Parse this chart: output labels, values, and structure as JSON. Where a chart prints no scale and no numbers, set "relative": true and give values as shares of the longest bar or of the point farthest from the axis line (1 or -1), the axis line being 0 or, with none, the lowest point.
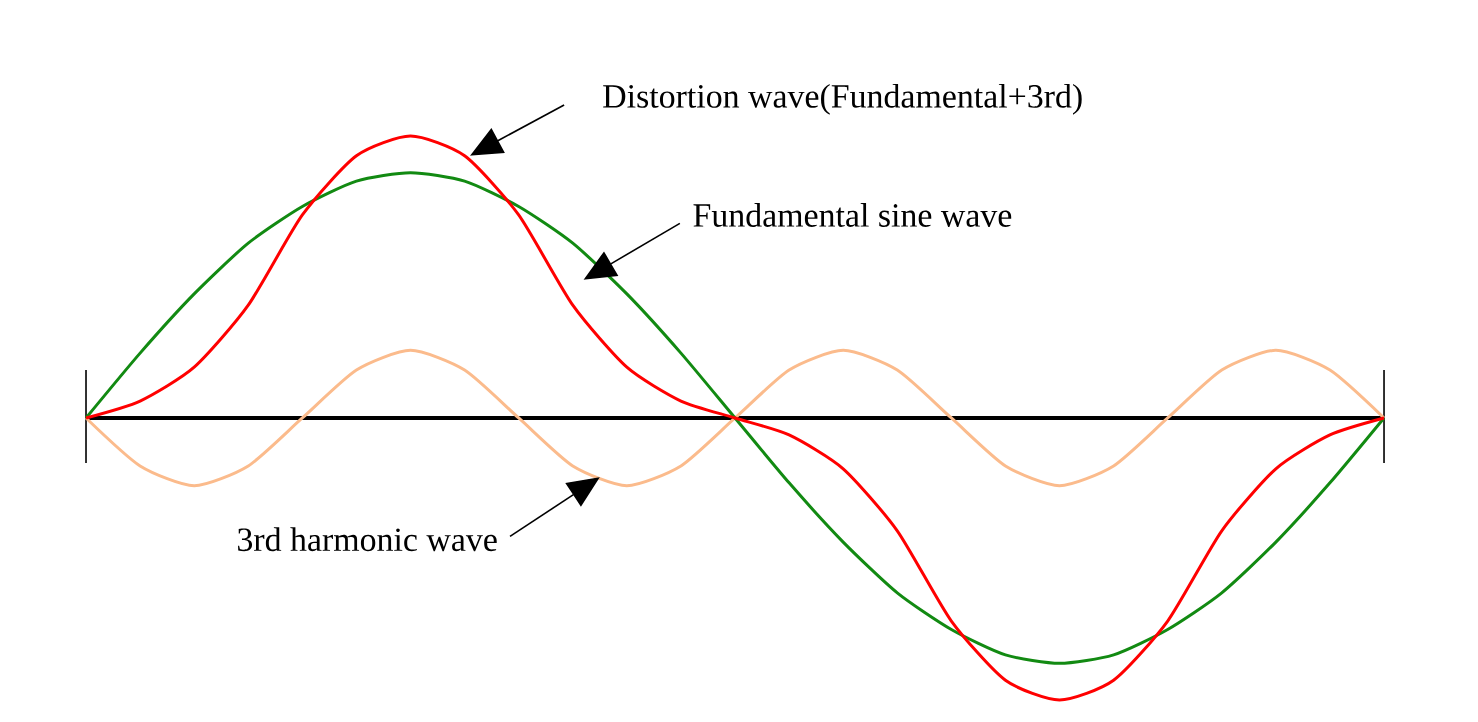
{
  "chart_data": {
    "type": "line",
    "relative": true,
    "categories": [
      null,
      null,
      null,
      null,
      null,
      null,
      null,
      null,
      null,
      null,
      null,
      null,
      null,
      null,
      null,
      null,
      null,
      null,
      null,
      null,
      null,
      null,
      null,
      null,
      null
    ],
    "series": [
      {
        "name": "Distortion  wave(Fundamental+3rd)",
        "color": "#ff0000",
        "values": [
          0,
          0.06,
          0.18,
          0.4,
          0.72,
          0.93,
          1.0,
          0.93,
          0.72,
          0.4,
          0.18,
          0.06,
          0,
          -0.06,
          -0.18,
          -0.4,
          -0.72,
          -0.93,
          -1.0,
          -0.93,
          -0.72,
          -0.4,
          -0.18,
          -0.06,
          0
        ]
      },
      {
        "name": "Fundamental sine wave",
        "color": "#128a12",
        "values": [
          0,
          0.23,
          0.44,
          0.62,
          0.75,
          0.84,
          0.87,
          0.84,
          0.75,
          0.62,
          0.44,
          0.23,
          0,
          -0.23,
          -0.44,
          -0.62,
          -0.75,
          -0.84,
          -0.87,
          -0.84,
          -0.75,
          -0.62,
          -0.44,
          -0.23,
          0
        ]
      },
      {
        "name": "3rd harmonic wave",
        "color": "#fbbb8c",
        "values": [
          0,
          -0.17,
          -0.24,
          -0.17,
          0,
          0.17,
          0.24,
          0.17,
          0,
          -0.17,
          -0.24,
          -0.17,
          0,
          0.17,
          0.24,
          0.17,
          0,
          -0.17,
          -0.24,
          -0.17,
          0,
          0.17,
          0.24,
          0.17,
          0
        ]
      }
    ]
  }
}
